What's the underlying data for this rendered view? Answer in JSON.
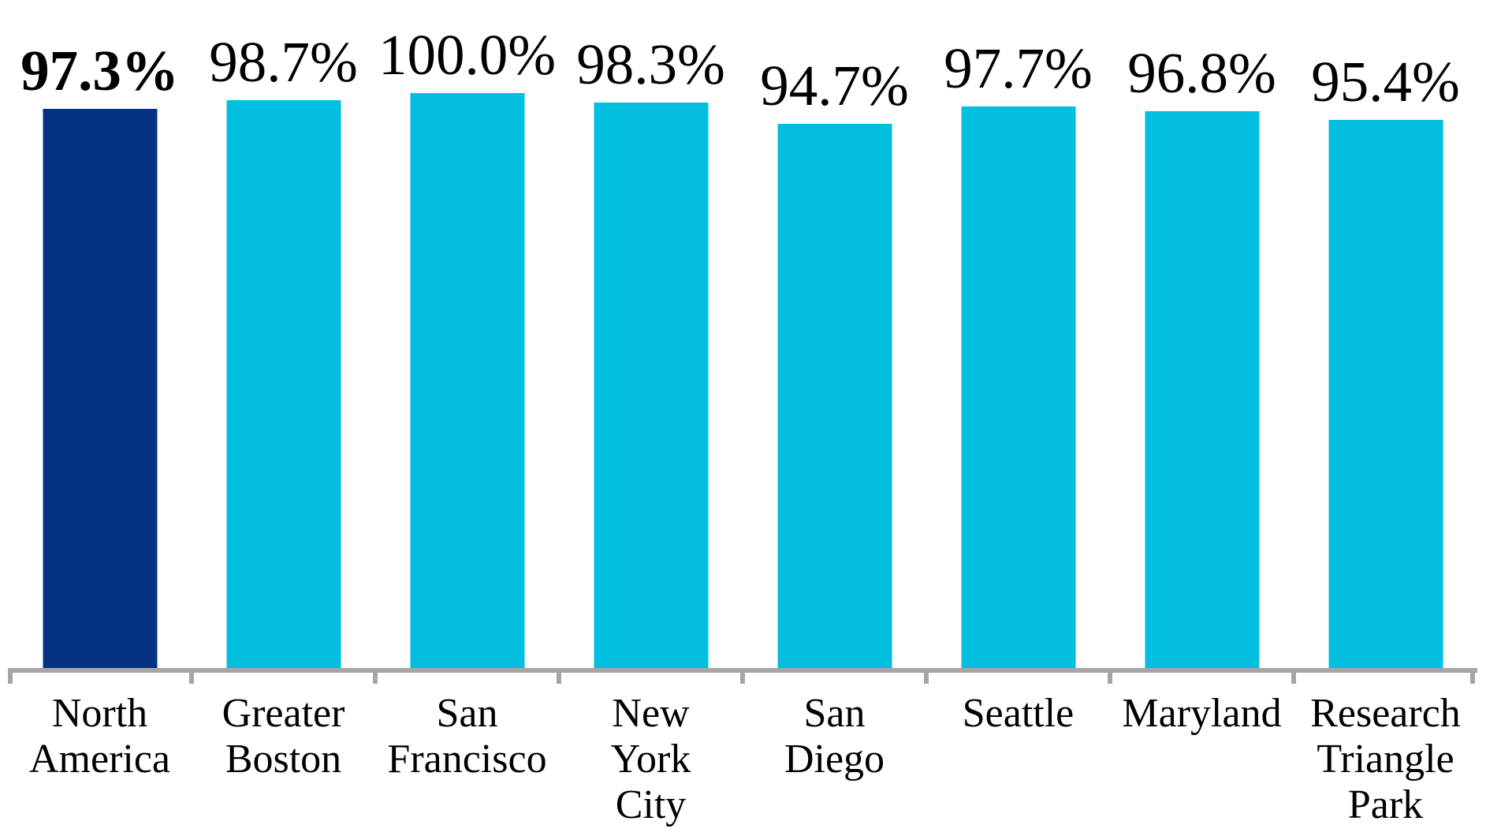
{
  "chart_data": {
    "type": "bar",
    "title": "",
    "xlabel": "",
    "ylabel": "",
    "ylim": [
      0,
      100
    ],
    "grid": false,
    "legend": null,
    "unit": "percent",
    "categories": [
      "North\nAmerica",
      "Greater\nBoston",
      "San\nFrancisco",
      "New\nYork\nCity",
      "San\nDiego",
      "Seattle",
      "Maryland",
      "Research\nTriangle\nPark"
    ],
    "values": [
      97.3,
      98.7,
      100.0,
      98.3,
      94.7,
      97.7,
      96.8,
      95.4
    ],
    "value_labels": [
      "97.3%",
      "98.7%",
      "100.0%",
      "98.3%",
      "94.7%",
      "97.7%",
      "96.8%",
      "95.4%"
    ],
    "highlight_index": 0,
    "bar_colors": [
      "#043180",
      "#03bfdf",
      "#03bfdf",
      "#03bfdf",
      "#03bfdf",
      "#03bfdf",
      "#03bfdf",
      "#03bfdf"
    ],
    "colors": {
      "highlight_bar": "#043180",
      "default_bar": "#03bfdf",
      "axis": "#a6a6a6",
      "text": "#000000"
    }
  }
}
